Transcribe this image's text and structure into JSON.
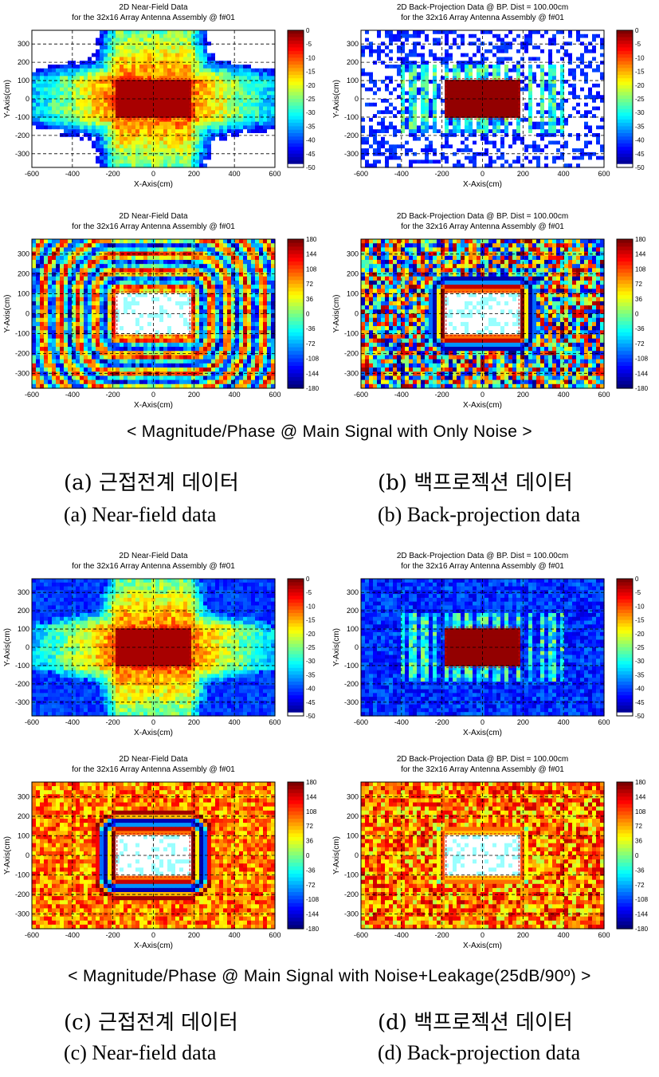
{
  "colors": {
    "jet": [
      "#00007f",
      "#0000ff",
      "#007fff",
      "#00ffff",
      "#7fff7f",
      "#ffff00",
      "#ff7f00",
      "#ff0000",
      "#7f0000"
    ],
    "grid": "#000000"
  },
  "axes": {
    "x_label": "X-Axis(cm)",
    "y_label": "Y-Axis(cm)",
    "x_ticks": [
      "-600",
      "-400",
      "-200",
      "0",
      "200",
      "400",
      "600"
    ],
    "y_ticks": [
      "300",
      "200",
      "100",
      "0",
      "-100",
      "-200",
      "-300"
    ]
  },
  "colorbars": {
    "magnitude": [
      "0",
      "-5",
      "-10",
      "-15",
      "-20",
      "-25",
      "-30",
      "-35",
      "-40",
      "-45",
      "-50"
    ],
    "phase": [
      "180",
      "144",
      "108",
      "72",
      "36",
      "0",
      "-36",
      "-72",
      "-108",
      "-144",
      "-180"
    ]
  },
  "panels": [
    {
      "id": "p1",
      "title1": "2D Near-Field Data",
      "title2": "for the 32x16 Array Antenna Assembly @ f#01",
      "kind": "magnitude",
      "variant": "nf-noise"
    },
    {
      "id": "p2",
      "title1": "2D Back-Projection Data @ BP. Dist = 100.00cm",
      "title2": "for the 32x16 Array Antenna Assembly @ f#01",
      "kind": "magnitude",
      "variant": "bp-noise"
    },
    {
      "id": "p3",
      "title1": "2D Near-Field Data",
      "title2": "for the 32x16 Array Antenna Assembly @ f#01",
      "kind": "phase",
      "variant": "nf-noise"
    },
    {
      "id": "p4",
      "title1": "2D Back-Projection Data @ BP. Dist = 100.00cm",
      "title2": "for the 32x16 Array Antenna Assembly @ f#01",
      "kind": "phase",
      "variant": "bp-noise"
    },
    {
      "id": "p5",
      "title1": "2D Near-Field Data",
      "title2": "for the 32x16 Array Antenna Assembly @ f#01",
      "kind": "magnitude",
      "variant": "nf-leak"
    },
    {
      "id": "p6",
      "title1": "2D Back-Projection Data @ BP. Dist = 100.00cm",
      "title2": "for the 32x16 Array Antenna Assembly @ f#01",
      "kind": "magnitude",
      "variant": "bp-leak"
    },
    {
      "id": "p7",
      "title1": "2D Near-Field Data",
      "title2": "for the 32x16 Array Antenna Assembly @ f#01",
      "kind": "phase",
      "variant": "nf-leak"
    },
    {
      "id": "p8",
      "title1": "2D Back-Projection Data @ BP. Dist = 100.00cm",
      "title2": "for the 32x16 Array Antenna Assembly @ f#01",
      "kind": "phase",
      "variant": "bp-leak"
    }
  ],
  "banners": {
    "top": "< Magnitude/Phase @ Main Signal with Only Noise >",
    "bottom": "< Magnitude/Phase @ Main Signal with Noise+Leakage(25dB/90º) >"
  },
  "subcaptions": {
    "a_ko": "(a) 근접전계 데이터",
    "b_ko": "(b) 백프로젝션 데이터",
    "a_en": "(a) Near-field data",
    "b_en": "(b) Back-projection data",
    "c_ko": "(c) 근접전계 데이터",
    "d_ko": "(d) 백프로젝션 데이터",
    "c_en": "(c) Near-field data",
    "d_en": "(d) Back-projection data"
  }
}
